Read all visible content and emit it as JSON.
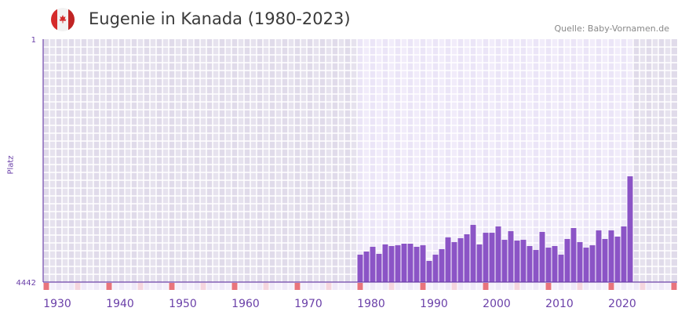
{
  "header": {
    "title": "Eugenie in Kanada (1980-2023)",
    "source": "Quelle: Baby-Vornamen.de"
  },
  "colors": {
    "bar": "#8b54c6",
    "axis": "#6a3fa8",
    "decade_tick": "#e8747c",
    "half_tick": "#f5d5de"
  },
  "chart_data": {
    "type": "bar",
    "title": "Eugenie in Kanada (1980-2023)",
    "ylabel": "Platz",
    "xlabel": "",
    "ylim": [
      1,
      4442
    ],
    "y_inverted": true,
    "yticks": [
      "1",
      "4442"
    ],
    "xlim": [
      1930,
      2030
    ],
    "xticks": [
      "1930",
      "1940",
      "1950",
      "1960",
      "1970",
      "1980",
      "1990",
      "2000",
      "2010",
      "2020"
    ],
    "x": [
      1980,
      1981,
      1982,
      1983,
      1984,
      1985,
      1986,
      1987,
      1988,
      1989,
      1990,
      1991,
      1992,
      1993,
      1994,
      1995,
      1996,
      1997,
      1998,
      1999,
      2000,
      2001,
      2002,
      2003,
      2004,
      2005,
      2006,
      2007,
      2008,
      2009,
      2010,
      2011,
      2012,
      2013,
      2014,
      2015,
      2016,
      2017,
      2018,
      2019,
      2020,
      2021,
      2022,
      2023
    ],
    "values": [
      3941,
      3883,
      3797,
      3926,
      3754,
      3783,
      3769,
      3740,
      3740,
      3797,
      3769,
      4055,
      3941,
      3840,
      3625,
      3711,
      3640,
      3568,
      3396,
      3754,
      3540,
      3540,
      3425,
      3669,
      3511,
      3683,
      3669,
      3783,
      3855,
      3525,
      3812,
      3783,
      3941,
      3654,
      3454,
      3711,
      3812,
      3769,
      3497,
      3654,
      3497,
      3611,
      3425,
      2508
    ],
    "grid": true
  }
}
